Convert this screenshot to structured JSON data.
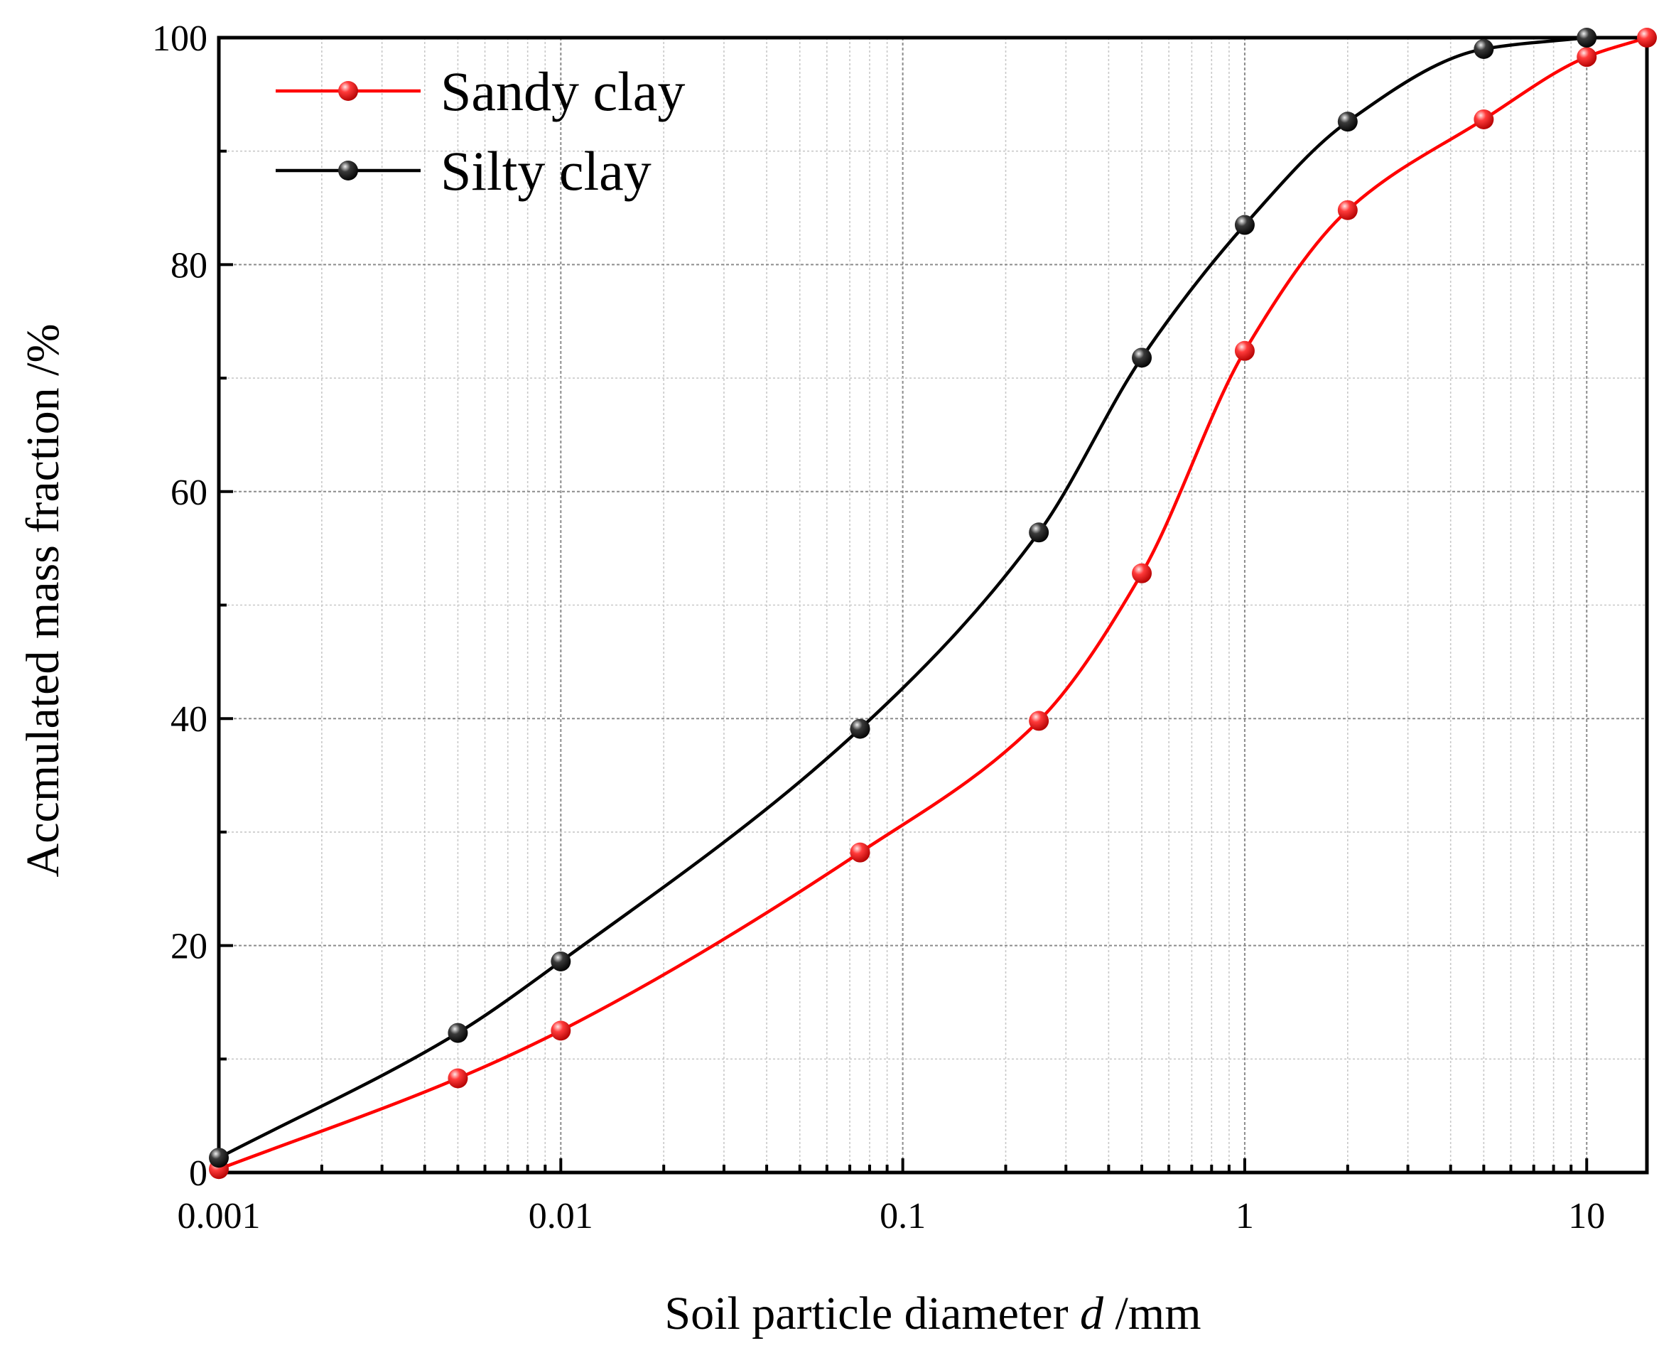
{
  "chart_data": {
    "type": "line",
    "xlabel": "Soil particle diameter d /mm",
    "xlabel_parts": {
      "prefix": "Soil particle diameter ",
      "italic": "d",
      "suffix": " /mm"
    },
    "ylabel": "Accmulated mass fraction /%",
    "xscale": "log",
    "xlim": [
      0.001,
      15
    ],
    "ylim": [
      0,
      100
    ],
    "xticks": [
      0.001,
      0.01,
      0.1,
      1,
      10
    ],
    "xtick_labels": [
      "0.001",
      "0.01",
      "0.1",
      "1",
      "10"
    ],
    "yticks": [
      0,
      20,
      40,
      60,
      80,
      100
    ],
    "ytick_labels": [
      "0",
      "20",
      "40",
      "60",
      "80",
      "100"
    ],
    "grid": true,
    "legend_position": "top-left",
    "series": [
      {
        "name": "Sandy clay",
        "color": "#ff0000",
        "x": [
          0.001,
          0.005,
          0.01,
          0.075,
          0.25,
          0.5,
          1,
          2,
          5,
          10,
          15
        ],
        "y": [
          0.3,
          8.3,
          12.5,
          28.2,
          39.8,
          52.8,
          72.4,
          84.8,
          92.8,
          98.3,
          100
        ]
      },
      {
        "name": "Silty clay",
        "color": "#000000",
        "x": [
          0.001,
          0.005,
          0.01,
          0.075,
          0.25,
          0.5,
          1,
          2,
          5,
          10
        ],
        "y": [
          1.3,
          12.3,
          18.6,
          39.1,
          56.4,
          71.8,
          83.5,
          92.6,
          99.0,
          100
        ]
      }
    ]
  }
}
